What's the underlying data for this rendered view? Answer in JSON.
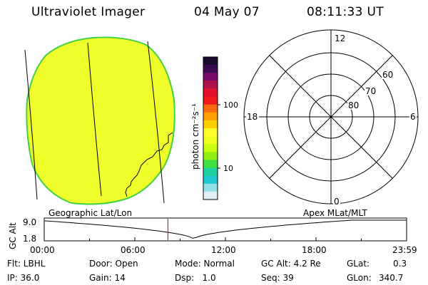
{
  "header": {
    "instrument": "Ultraviolet Imager",
    "date": "04 May 07",
    "time": "08:11:33 UT"
  },
  "colorbar": {
    "unit_label": "photon cm⁻²s⁻¹",
    "tick_100": "100",
    "tick_10": "10",
    "colors": [
      "#1a0a2a",
      "#3a0a50",
      "#7a0a6a",
      "#b0104a",
      "#e0102a",
      "#f01818",
      "#f86a10",
      "#ffa000",
      "#ffd000",
      "#ffff30",
      "#f0ff20",
      "#c8ff10",
      "#90f010",
      "#40e040",
      "#20d0a0",
      "#20c8d0",
      "#90e0e8",
      "#e0f0f4"
    ]
  },
  "polar": {
    "mlt_top": "12",
    "mlt_left": "18",
    "mlt_right": "6",
    "mlt_bottom": "0",
    "lat_60": "60",
    "lat_70": "70",
    "lat_80": "80"
  },
  "altitude_plot": {
    "y_axis_label": "GC Alt",
    "y_max": "9.0",
    "y_min": "1.8",
    "left_title": "Geographic Lat/Lon",
    "right_title": "Apex MLat/MLT",
    "x_ticks": [
      "00:00",
      "06:00",
      "12:00",
      "18:00",
      "23:59"
    ],
    "current_time_hours": 8.19
  },
  "status": {
    "filter": "Flt: LBHL",
    "door": "Door: Open",
    "mode": "Mode: Normal",
    "gc_alt": "GC Alt: 4.2 Re",
    "glat_label": "GLat:",
    "glat_value": "0.3",
    "ip": "IP: 36.0",
    "gain": "Gain: 14",
    "dsp": "Dsp:   1.0",
    "seq": "Seq: 39",
    "glon_label": "GLon:",
    "glon_value": "340.7"
  }
}
